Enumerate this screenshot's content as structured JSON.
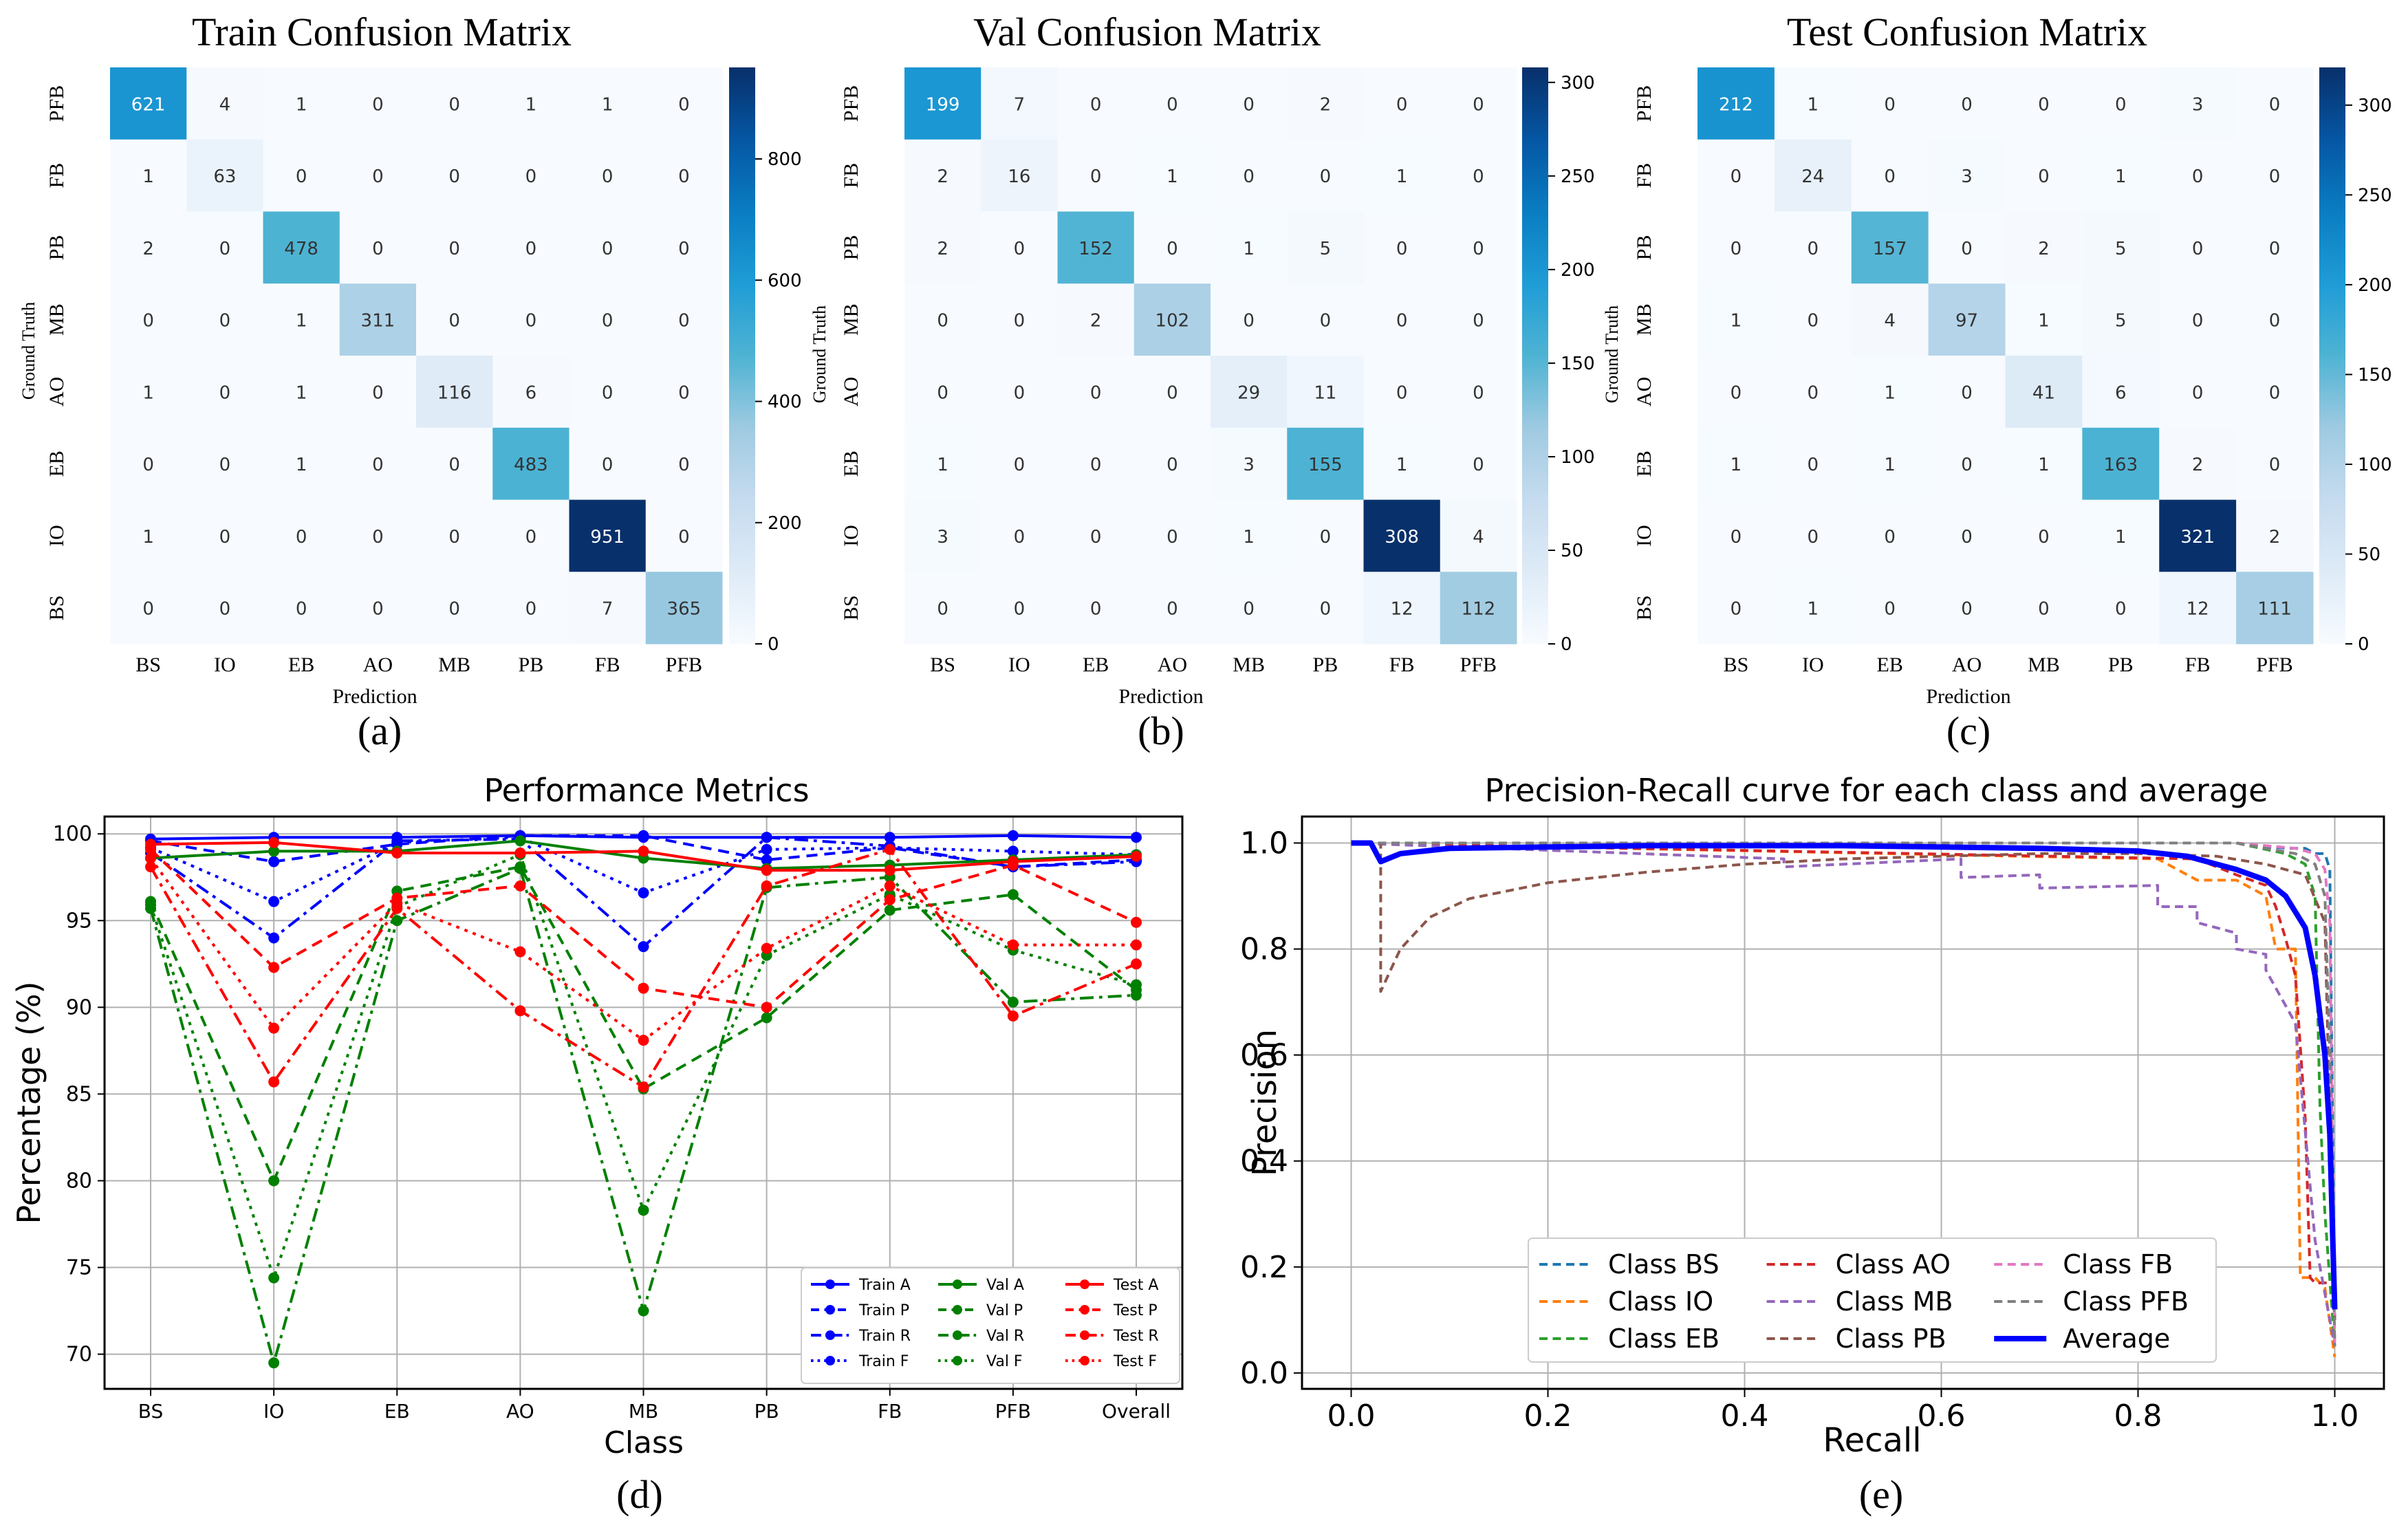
{
  "chart_data": [
    {
      "type": "heatmap",
      "title": "Train Confusion Matrix",
      "xlabel": "Prediction",
      "ylabel": "Ground Truth",
      "panel_label": "(a)",
      "x_categories": [
        "BS",
        "IO",
        "EB",
        "AO",
        "MB",
        "PB",
        "FB",
        "PFB"
      ],
      "y_categories": [
        "PFB",
        "FB",
        "PB",
        "MB",
        "AO",
        "EB",
        "IO",
        "BS"
      ],
      "values": [
        [
          621,
          4,
          1,
          0,
          0,
          1,
          1,
          0
        ],
        [
          1,
          63,
          0,
          0,
          0,
          0,
          0,
          0
        ],
        [
          2,
          0,
          478,
          0,
          0,
          0,
          0,
          0
        ],
        [
          0,
          0,
          1,
          311,
          0,
          0,
          0,
          0
        ],
        [
          1,
          0,
          1,
          0,
          116,
          6,
          0,
          0
        ],
        [
          0,
          0,
          1,
          0,
          0,
          483,
          0,
          0
        ],
        [
          1,
          0,
          0,
          0,
          0,
          0,
          951,
          0
        ],
        [
          0,
          0,
          0,
          0,
          0,
          0,
          7,
          365
        ]
      ],
      "colorbar_range": [
        0,
        951
      ],
      "colorbar_ticks": [
        0,
        200,
        400,
        600,
        800
      ]
    },
    {
      "type": "heatmap",
      "title": "Val Confusion Matrix",
      "xlabel": "Prediction",
      "ylabel": "Ground Truth",
      "panel_label": "(b)",
      "x_categories": [
        "BS",
        "IO",
        "EB",
        "AO",
        "MB",
        "PB",
        "FB",
        "PFB"
      ],
      "y_categories": [
        "PFB",
        "FB",
        "PB",
        "MB",
        "AO",
        "EB",
        "IO",
        "BS"
      ],
      "values": [
        [
          199,
          7,
          0,
          0,
          0,
          2,
          0,
          0
        ],
        [
          2,
          16,
          0,
          1,
          0,
          0,
          1,
          0
        ],
        [
          2,
          0,
          152,
          0,
          1,
          5,
          0,
          0
        ],
        [
          0,
          0,
          2,
          102,
          0,
          0,
          0,
          0
        ],
        [
          0,
          0,
          0,
          0,
          29,
          11,
          0,
          0
        ],
        [
          1,
          0,
          0,
          0,
          3,
          155,
          1,
          0
        ],
        [
          3,
          0,
          0,
          0,
          1,
          0,
          308,
          4
        ],
        [
          0,
          0,
          0,
          0,
          0,
          0,
          12,
          112
        ]
      ],
      "colorbar_range": [
        0,
        308
      ],
      "colorbar_ticks": [
        0,
        50,
        100,
        150,
        200,
        250,
        300
      ]
    },
    {
      "type": "heatmap",
      "title": "Test Confusion Matrix",
      "xlabel": "Prediction",
      "ylabel": "Ground Truth",
      "panel_label": "(c)",
      "x_categories": [
        "BS",
        "IO",
        "EB",
        "AO",
        "MB",
        "PB",
        "FB",
        "PFB"
      ],
      "y_categories": [
        "PFB",
        "FB",
        "PB",
        "MB",
        "AO",
        "EB",
        "IO",
        "BS"
      ],
      "values": [
        [
          212,
          1,
          0,
          0,
          0,
          0,
          3,
          0
        ],
        [
          0,
          24,
          0,
          3,
          0,
          1,
          0,
          0
        ],
        [
          0,
          0,
          157,
          0,
          2,
          5,
          0,
          0
        ],
        [
          1,
          0,
          4,
          97,
          1,
          5,
          0,
          0
        ],
        [
          0,
          0,
          1,
          0,
          41,
          6,
          0,
          0
        ],
        [
          1,
          0,
          1,
          0,
          1,
          163,
          2,
          0
        ],
        [
          0,
          0,
          0,
          0,
          0,
          1,
          321,
          2
        ],
        [
          0,
          1,
          0,
          0,
          0,
          0,
          12,
          111
        ]
      ],
      "colorbar_range": [
        0,
        321
      ],
      "colorbar_ticks": [
        0,
        50,
        100,
        150,
        200,
        250,
        300
      ]
    },
    {
      "type": "line",
      "title": "Performance Metrics",
      "xlabel": "Class",
      "ylabel": "Percentage (%)",
      "panel_label": "(d)",
      "categories": [
        "BS",
        "IO",
        "EB",
        "AO",
        "MB",
        "PB",
        "FB",
        "PFB",
        "Overall"
      ],
      "ylim": [
        68,
        101
      ],
      "yticks": [
        70,
        75,
        80,
        85,
        90,
        95,
        100
      ],
      "grid": true,
      "legend_position": "lower-right",
      "series": [
        {
          "name": "Train A",
          "color": "#0000ff",
          "dash": "solid",
          "values": [
            99.7,
            99.8,
            99.8,
            99.9,
            99.8,
            99.8,
            99.8,
            99.9,
            99.8
          ]
        },
        {
          "name": "Train P",
          "color": "#0000ff",
          "dash": "dashed",
          "values": [
            99.6,
            98.4,
            99.4,
            99.9,
            99.9,
            98.5,
            99.2,
            98.1,
            98.5
          ]
        },
        {
          "name": "Train R",
          "color": "#0000ff",
          "dash": "dashdot",
          "values": [
            98.9,
            94.0,
            99.6,
            99.7,
            93.5,
            99.8,
            99.3,
            98.1,
            98.4
          ]
        },
        {
          "name": "Train F",
          "color": "#0000ff",
          "dash": "dotted",
          "values": [
            99.2,
            96.1,
            99.5,
            99.8,
            96.6,
            99.1,
            99.2,
            99.0,
            98.8
          ]
        },
        {
          "name": "Val A",
          "color": "#008000",
          "dash": "solid",
          "values": [
            98.6,
            99.0,
            99.0,
            99.6,
            98.6,
            98.0,
            98.2,
            98.5,
            98.8
          ]
        },
        {
          "name": "Val P",
          "color": "#008000",
          "dash": "dashed",
          "values": [
            96.1,
            80.0,
            96.7,
            98.1,
            85.3,
            89.4,
            95.6,
            96.5,
            91.0
          ]
        },
        {
          "name": "Val R",
          "color": "#008000",
          "dash": "dashdot",
          "values": [
            95.7,
            69.5,
            95.0,
            98.0,
            72.5,
            96.9,
            97.5,
            90.3,
            90.7
          ]
        },
        {
          "name": "Val F",
          "color": "#008000",
          "dash": "dotted",
          "values": [
            95.9,
            74.4,
            95.8,
            98.8,
            78.3,
            93.0,
            96.5,
            93.3,
            91.3
          ]
        },
        {
          "name": "Test A",
          "color": "#ff0000",
          "dash": "solid",
          "values": [
            99.4,
            99.5,
            98.9,
            98.9,
            99.0,
            97.9,
            97.9,
            98.4,
            98.7
          ]
        },
        {
          "name": "Test P",
          "color": "#ff0000",
          "dash": "dashed",
          "values": [
            99.1,
            92.3,
            96.3,
            97.0,
            91.1,
            90.0,
            96.2,
            98.2,
            94.9
          ]
        },
        {
          "name": "Test R",
          "color": "#ff0000",
          "dash": "dashdot",
          "values": [
            98.1,
            85.7,
            95.7,
            89.8,
            85.4,
            97.0,
            99.1,
            89.5,
            92.5
          ]
        },
        {
          "name": "Test F",
          "color": "#ff0000",
          "dash": "dotted",
          "values": [
            98.6,
            88.8,
            96.0,
            93.2,
            88.1,
            93.4,
            97.0,
            93.6,
            93.6
          ]
        }
      ]
    },
    {
      "type": "line",
      "title": "Precision-Recall curve for each class and average",
      "xlabel": "Recall",
      "ylabel": "Precision",
      "panel_label": "(e)",
      "xlim": [
        -0.05,
        1.05
      ],
      "ylim": [
        -0.03,
        1.05
      ],
      "xticks": [
        0.0,
        0.2,
        0.4,
        0.6,
        0.8,
        1.0
      ],
      "yticks": [
        0.0,
        0.2,
        0.4,
        0.6,
        0.8,
        1.0
      ],
      "grid": true,
      "legend_position": "lower-center",
      "series": [
        {
          "name": "Class BS",
          "color": "#1f77b4",
          "dash": "dashed",
          "width": 4,
          "x": [
            0,
            0.9,
            0.95,
            0.97,
            0.98,
            0.99,
            0.995,
            1.0
          ],
          "y": [
            1,
            1,
            0.99,
            0.99,
            0.98,
            0.98,
            0.95,
            0.1
          ]
        },
        {
          "name": "Class IO",
          "color": "#ff7f0e",
          "dash": "dashed",
          "width": 4,
          "x": [
            0,
            0.82,
            0.86,
            0.9,
            0.93,
            0.94,
            0.96,
            0.965,
            0.98,
            0.99,
            1.0
          ],
          "y": [
            1,
            0.97,
            0.93,
            0.93,
            0.9,
            0.8,
            0.8,
            0.18,
            0.18,
            0.16,
            0.03
          ]
        },
        {
          "name": "Class EB",
          "color": "#2ca02c",
          "dash": "dashed",
          "width": 4,
          "x": [
            0,
            0.9,
            0.95,
            0.97,
            0.98,
            0.985,
            0.99,
            1.0
          ],
          "y": [
            1,
            1,
            0.98,
            0.96,
            0.9,
            0.5,
            0.3,
            0.05
          ]
        },
        {
          "name": "Class AO",
          "color": "#d62728",
          "dash": "dashed",
          "width": 4,
          "x": [
            0,
            0.86,
            0.9,
            0.93,
            0.94,
            0.95,
            0.96,
            0.97,
            0.975,
            0.98,
            1.0
          ],
          "y": [
            1,
            0.97,
            0.94,
            0.92,
            0.88,
            0.82,
            0.75,
            0.48,
            0.18,
            0.17,
            0.17
          ]
        },
        {
          "name": "Class MB",
          "color": "#9467bd",
          "dash": "dashed",
          "width": 4,
          "x": [
            0,
            0.44,
            0.44,
            0.62,
            0.62,
            0.7,
            0.7,
            0.82,
            0.82,
            0.86,
            0.86,
            0.9,
            0.9,
            0.93,
            0.93,
            0.96,
            0.98,
            1.0
          ],
          "y": [
            1,
            0.97,
            0.955,
            0.97,
            0.935,
            0.94,
            0.915,
            0.92,
            0.88,
            0.88,
            0.85,
            0.83,
            0.8,
            0.79,
            0.76,
            0.66,
            0.25,
            0.05
          ]
        },
        {
          "name": "Class PB",
          "color": "#8c564b",
          "dash": "dashed",
          "width": 4,
          "x": [
            0,
            0.02,
            0.03,
            0.03,
            0.05,
            0.08,
            0.12,
            0.2,
            0.3,
            0.4,
            0.5,
            0.6,
            0.7,
            0.8,
            0.88,
            0.93,
            0.97,
            0.99,
            1.0
          ],
          "y": [
            1,
            1,
            1,
            0.72,
            0.8,
            0.86,
            0.895,
            0.925,
            0.945,
            0.96,
            0.97,
            0.975,
            0.98,
            0.98,
            0.975,
            0.96,
            0.94,
            0.85,
            0.1
          ]
        },
        {
          "name": "Class FB",
          "color": "#e377c2",
          "dash": "dashed",
          "width": 4,
          "x": [
            0,
            0.9,
            0.96,
            0.98,
            0.99,
            0.995,
            1.0
          ],
          "y": [
            1,
            1,
            0.99,
            0.98,
            0.95,
            0.85,
            0.05
          ]
        },
        {
          "name": "Class PFB",
          "color": "#7f7f7f",
          "dash": "dashed",
          "width": 4,
          "x": [
            0,
            0.9,
            0.96,
            0.98,
            0.99,
            0.995,
            1.0
          ],
          "y": [
            1,
            1,
            0.98,
            0.96,
            0.9,
            0.6,
            0.05
          ]
        },
        {
          "name": "Average",
          "color": "#0000ff",
          "dash": "solid",
          "width": 8,
          "x": [
            0,
            0.02,
            0.03,
            0.05,
            0.1,
            0.3,
            0.5,
            0.7,
            0.8,
            0.85,
            0.88,
            0.9,
            0.93,
            0.95,
            0.97,
            0.98,
            0.99,
            0.995,
            1.0
          ],
          "y": [
            1,
            1,
            0.965,
            0.98,
            0.99,
            0.995,
            0.995,
            0.99,
            0.985,
            0.975,
            0.96,
            0.95,
            0.93,
            0.9,
            0.84,
            0.75,
            0.6,
            0.45,
            0.12
          ]
        }
      ]
    }
  ]
}
